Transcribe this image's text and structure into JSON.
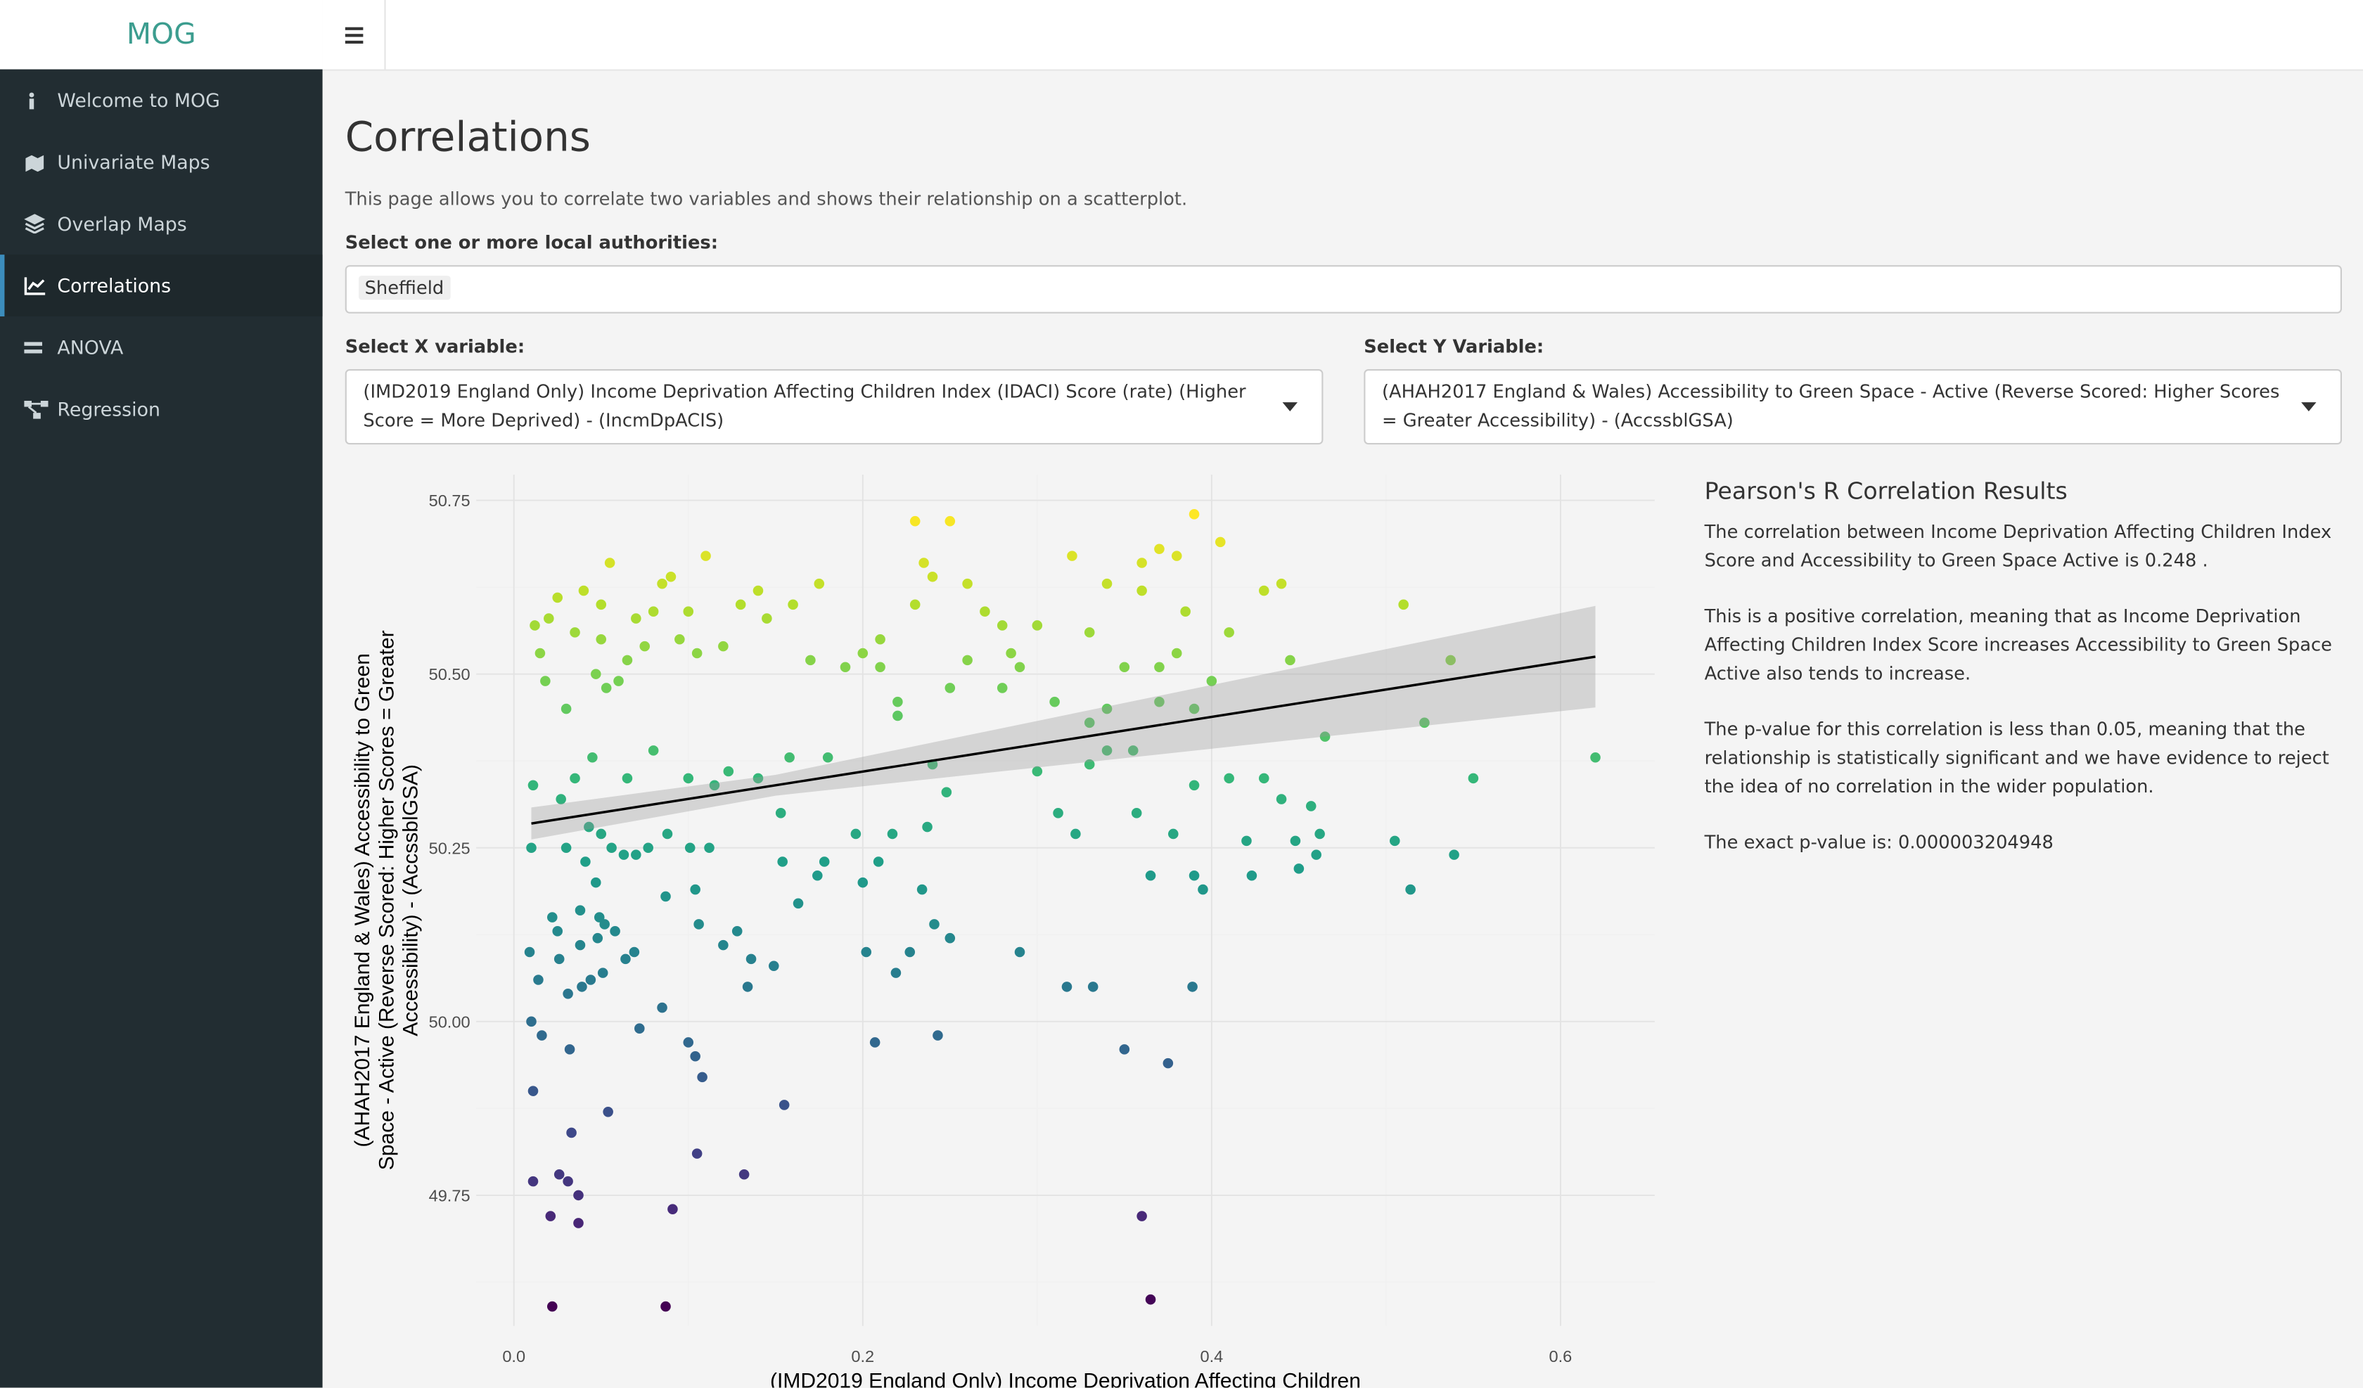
{
  "sidebar": {
    "brand": "MOG",
    "menu": [
      "Welcome to MOG",
      "Univariate Maps",
      "Overlap Maps",
      "Correlations",
      "ANOVA",
      "Regression"
    ]
  },
  "page": {
    "title": "Correlations",
    "description": "This page allows you to correlate two variables and shows their relationship on a scatterplot.",
    "authority_label": "Select one or more local authorities:",
    "authority_selected": "Sheffield",
    "x_label": "Select X variable:",
    "x_value": "(IMD2019 England Only) Income Deprivation Affecting Children Index (IDACI) Score (rate) (Higher Score = More Deprived) - (IncmDpACIS)",
    "y_label": "Select Y Variable:",
    "y_value": "(AHAH2017 England & Wales) Accessibility to Green Space - Active (Reverse Scored: Higher Scores = Greater Accessibility) - (AccssblGSA)"
  },
  "chart_data": {
    "type": "scatter",
    "colormap": "viridis",
    "grid": true,
    "xlabel": "(IMD2019 England Only) Income Deprivation Affecting Children",
    "ylabel": [
      "(AHAH2017 England & Wales) Accessibility to Green",
      "Space - Active (Reverse Scored: Higher Scores = Greater",
      "Accessibility) - (AccssblGSA)"
    ],
    "xlim": [
      -0.0216,
      0.654
    ],
    "ylim": [
      49.562,
      50.787
    ],
    "xticks": [
      {
        "value": 0,
        "label": "0.0"
      },
      0.2,
      0.4,
      0.6
    ],
    "yticks": [
      49.75,
      {
        "value": 50,
        "label": "50.00"
      },
      50.25,
      {
        "value": 50.5,
        "label": "50.50"
      },
      50.75
    ],
    "xminor": [
      0.1,
      0.3,
      0.5
    ],
    "yminor": [
      49.625,
      49.875,
      50.125,
      50.375,
      50.625
    ],
    "fit": {
      "x": [
        0.01,
        0.15,
        0.62
      ],
      "y": [
        50.285,
        50.34,
        50.525
      ],
      "lower": [
        50.262,
        50.325,
        50.452
      ],
      "upper": [
        50.308,
        50.355,
        50.598
      ]
    },
    "x": [
      0.022,
      0.087,
      0.365,
      0.021,
      0.037,
      0.36,
      0.011,
      0.026,
      0.031,
      0.037,
      0.091,
      0.132,
      0.105,
      0.033,
      0.054,
      0.155,
      0.011,
      0.35,
      0.375,
      0.1,
      0.104,
      0.108,
      0.085,
      0.072,
      0.207,
      0.243,
      0.016,
      0.032,
      0.01,
      0.014,
      0.009,
      0.031,
      0.026,
      0.039,
      0.044,
      0.051,
      0.064,
      0.038,
      0.048,
      0.022,
      0.025,
      0.049,
      0.052,
      0.058,
      0.069,
      0.136,
      0.149,
      0.134,
      0.12,
      0.128,
      0.106,
      0.087,
      0.104,
      0.2,
      0.209,
      0.234,
      0.241,
      0.25,
      0.227,
      0.202,
      0.219,
      0.29,
      0.317,
      0.332,
      0.389,
      0.174,
      0.163,
      0.038,
      0.047,
      0.041,
      0.03,
      0.056,
      0.063,
      0.07,
      0.077,
      0.043,
      0.05,
      0.088,
      0.101,
      0.112,
      0.154,
      0.178,
      0.196,
      0.217,
      0.237,
      0.312,
      0.322,
      0.357,
      0.378,
      0.365,
      0.39,
      0.395,
      0.42,
      0.423,
      0.448,
      0.45,
      0.462,
      0.46,
      0.505,
      0.514,
      0.539,
      0.01,
      0.011,
      0.027,
      0.035,
      0.045,
      0.065,
      0.08,
      0.1,
      0.115,
      0.123,
      0.14,
      0.153,
      0.158,
      0.18,
      0.24,
      0.248,
      0.3,
      0.33,
      0.34,
      0.355,
      0.39,
      0.41,
      0.43,
      0.44,
      0.457,
      0.465,
      0.55,
      0.522,
      0.62,
      0.37,
      0.34,
      0.33,
      0.4,
      0.39,
      0.31,
      0.2,
      0.21,
      0.22,
      0.22,
      0.25,
      0.28,
      0.26,
      0.285,
      0.29,
      0.047,
      0.053,
      0.06,
      0.018,
      0.03,
      0.012,
      0.015,
      0.025,
      0.04,
      0.05,
      0.07,
      0.085,
      0.09,
      0.11,
      0.055,
      0.08,
      0.1,
      0.13,
      0.14,
      0.145,
      0.16,
      0.12,
      0.105,
      0.17,
      0.19,
      0.21,
      0.23,
      0.24,
      0.26,
      0.27,
      0.28,
      0.3,
      0.33,
      0.32,
      0.34,
      0.36,
      0.37,
      0.38,
      0.39,
      0.405,
      0.36,
      0.385,
      0.41,
      0.43,
      0.44,
      0.445,
      0.35,
      0.37,
      0.38,
      0.23,
      0.25,
      0.51,
      0.537,
      0.235,
      0.175,
      0.065,
      0.075,
      0.095,
      0.05,
      0.02,
      0.035
    ],
    "values": [
      49.59,
      49.59,
      49.6,
      49.72,
      49.71,
      49.72,
      49.77,
      49.78,
      49.77,
      49.75,
      49.73,
      49.78,
      49.81,
      49.84,
      49.87,
      49.88,
      49.9,
      49.96,
      49.94,
      49.97,
      49.95,
      49.92,
      50.02,
      49.99,
      49.97,
      49.98,
      49.98,
      49.96,
      50.0,
      50.06,
      50.1,
      50.04,
      50.09,
      50.05,
      50.06,
      50.07,
      50.09,
      50.11,
      50.12,
      50.15,
      50.13,
      50.15,
      50.14,
      50.13,
      50.1,
      50.09,
      50.08,
      50.05,
      50.11,
      50.13,
      50.14,
      50.18,
      50.19,
      50.2,
      50.23,
      50.19,
      50.14,
      50.12,
      50.1,
      50.1,
      50.07,
      50.1,
      50.05,
      50.05,
      50.05,
      50.21,
      50.17,
      50.16,
      50.2,
      50.23,
      50.25,
      50.25,
      50.24,
      50.24,
      50.25,
      50.28,
      50.27,
      50.27,
      50.25,
      50.25,
      50.23,
      50.23,
      50.27,
      50.27,
      50.28,
      50.3,
      50.27,
      50.3,
      50.27,
      50.21,
      50.21,
      50.19,
      50.26,
      50.21,
      50.26,
      50.22,
      50.27,
      50.24,
      50.26,
      50.19,
      50.24,
      50.25,
      50.34,
      50.32,
      50.35,
      50.38,
      50.35,
      50.39,
      50.35,
      50.34,
      50.36,
      50.35,
      50.3,
      50.38,
      50.38,
      50.37,
      50.33,
      50.36,
      50.37,
      50.39,
      50.39,
      50.34,
      50.35,
      50.35,
      50.32,
      50.31,
      50.41,
      50.35,
      50.43,
      50.38,
      50.46,
      50.45,
      50.43,
      50.49,
      50.45,
      50.46,
      50.53,
      50.51,
      50.46,
      50.44,
      50.48,
      50.48,
      50.52,
      50.53,
      50.51,
      50.5,
      50.48,
      50.49,
      50.49,
      50.45,
      50.57,
      50.53,
      50.61,
      50.62,
      50.6,
      50.58,
      50.63,
      50.64,
      50.67,
      50.66,
      50.59,
      50.59,
      50.6,
      50.62,
      50.58,
      50.6,
      50.54,
      50.53,
      50.52,
      50.51,
      50.55,
      50.6,
      50.64,
      50.63,
      50.59,
      50.57,
      50.57,
      50.56,
      50.67,
      50.63,
      50.66,
      50.68,
      50.67,
      50.73,
      50.69,
      50.62,
      50.59,
      50.56,
      50.62,
      50.63,
      50.52,
      50.51,
      50.51,
      50.53,
      50.72,
      50.72,
      50.6,
      50.52,
      50.66,
      50.63,
      50.52,
      50.54,
      50.55,
      50.55,
      50.58,
      50.56
    ]
  },
  "results": {
    "title": "Pearson's R Correlation Results",
    "paragraphs": [
      "The correlation between Income Deprivation Affecting Children Index Score and Accessibility to Green Space Active is 0.248 .",
      "This is a positive correlation, meaning that as Income Deprivation Affecting Children Index Score increases Accessibility to Green Space Active also tends to increase.",
      "The p-value for this correlation is less than 0.05, meaning that the relationship is statistically significant and we have evidence to reject the idea of no correlation in the wider population.",
      "The exact p-value is: 0.000003204948"
    ]
  }
}
